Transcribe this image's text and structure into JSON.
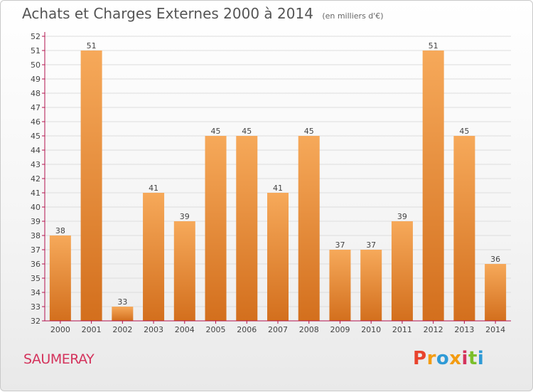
{
  "header": {
    "title": "Achats et Charges Externes 2000 à 2014",
    "subtitle": "(en milliers d'€)"
  },
  "footer": {
    "place": "SAUMERAY",
    "logo_text": "Proxiti",
    "logo_colors": [
      "#e8432d",
      "#f39c12",
      "#2e9ad6",
      "#f39c12",
      "#d4335c",
      "#7bbf2a",
      "#2e9ad6"
    ]
  },
  "colors": {
    "bar_top": "#f6a95a",
    "bar_bottom": "#d36f1d",
    "axis": "#b3124d",
    "grid": "#dddddd"
  },
  "chart_data": {
    "type": "bar",
    "title": "Achats et Charges Externes 2000 à 2014",
    "subtitle": "(en milliers d'€)",
    "xlabel": "",
    "ylabel": "",
    "categories": [
      "2000",
      "2001",
      "2002",
      "2003",
      "2004",
      "2005",
      "2006",
      "2007",
      "2008",
      "2009",
      "2010",
      "2011",
      "2012",
      "2013",
      "2014"
    ],
    "values": [
      38,
      51,
      33,
      41,
      39,
      45,
      45,
      41,
      45,
      37,
      37,
      39,
      51,
      45,
      36
    ],
    "ylim": [
      32,
      52
    ],
    "yticks": [
      32,
      33,
      34,
      35,
      36,
      37,
      38,
      39,
      40,
      41,
      42,
      43,
      44,
      45,
      46,
      47,
      48,
      49,
      50,
      51,
      52
    ],
    "grid": true,
    "data_labels": true
  }
}
